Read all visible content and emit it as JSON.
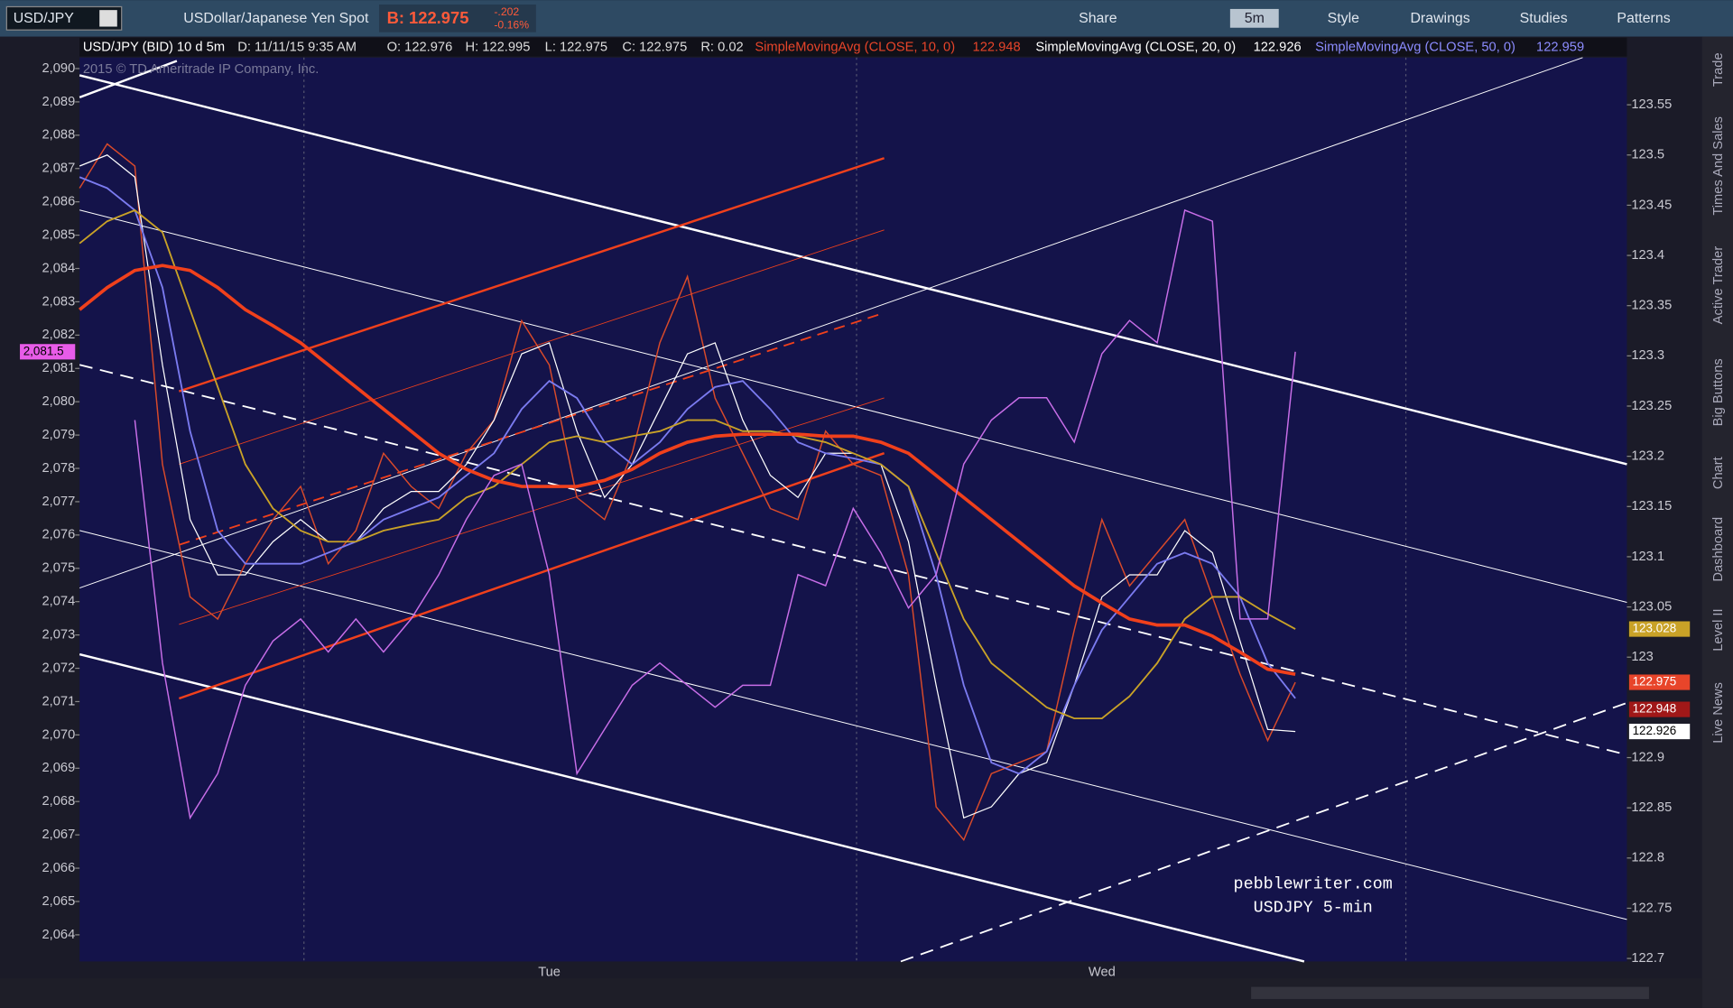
{
  "toolbar": {
    "symbol": "USD/JPY",
    "description": "USDollar/Japanese Yen Spot",
    "bid": "B: 122.975",
    "change": "-.202",
    "change_pct": "-0.16%",
    "share": "Share",
    "interval": "5m",
    "style": "Style",
    "drawings": "Drawings",
    "studies": "Studies",
    "patterns": "Patterns"
  },
  "info": {
    "symbol": "USD/JPY (BID) 10 d 5m",
    "date": "D: 11/11/15 9:35 AM",
    "open": "O: 122.976",
    "high": "H: 122.995",
    "low": "L: 122.975",
    "close": "C: 122.975",
    "range": "R: 0.02",
    "sma10": "SimpleMovingAvg (CLOSE, 10, 0)",
    "sma10_value": "122.948",
    "sma20": "SimpleMovingAvg (CLOSE, 20, 0)",
    "sma20_value": "122.926",
    "sma50": "SimpleMovingAvg (CLOSE, 50, 0)",
    "sma50_value": "122.959"
  },
  "copyright": "2015 © TD Ameritrade IP Company, Inc.",
  "watermark": [
    "pebblewriter.com",
    "USDJPY 5-min"
  ],
  "sidebar": [
    "Trade",
    "Times And Sales",
    "Active Trader",
    "Big Buttons",
    "Chart",
    "Dashboard",
    "Level II",
    "Live News"
  ],
  "chart_data": {
    "type": "line",
    "categories": [
      null,
      null,
      null,
      null,
      null,
      null,
      null,
      null,
      null,
      null,
      null,
      null,
      null,
      null,
      null,
      null,
      null,
      "Tue",
      null,
      null,
      null,
      null,
      null,
      null,
      null,
      null,
      null,
      null,
      null,
      null,
      null,
      null,
      null,
      null,
      null,
      null,
      null,
      "Wed",
      null,
      null,
      null,
      null,
      null,
      null,
      null,
      null,
      null,
      null,
      null,
      null,
      null,
      null,
      null,
      null,
      null,
      null,
      null
    ],
    "ylim": [
      122.697,
      123.597
    ],
    "yticks": [
      123.55,
      123.5,
      123.45,
      123.4,
      123.35,
      123.3,
      123.25,
      123.2,
      123.15,
      123.1,
      123.05,
      123,
      122.9,
      122.85,
      122.8,
      122.75,
      122.7
    ],
    "y2lim": [
      2063.2,
      2090.33
    ],
    "y2ticks": [
      {
        "value": 2090,
        "label": "2,090"
      },
      {
        "value": 2089,
        "label": "2,089"
      },
      {
        "value": 2088,
        "label": "2,088"
      },
      {
        "value": 2087,
        "label": "2,087"
      },
      {
        "value": 2086,
        "label": "2,086"
      },
      {
        "value": 2085,
        "label": "2,085"
      },
      {
        "value": 2084,
        "label": "2,084"
      },
      {
        "value": 2083,
        "label": "2,083"
      },
      {
        "value": 2082,
        "label": "2,082"
      },
      {
        "value": 2081,
        "label": "2,081"
      },
      {
        "value": 2080,
        "label": "2,080"
      },
      {
        "value": 2079,
        "label": "2,079"
      },
      {
        "value": 2078,
        "label": "2,078"
      },
      {
        "value": 2077,
        "label": "2,077"
      },
      {
        "value": 2076,
        "label": "2,076"
      },
      {
        "value": 2075,
        "label": "2,075"
      },
      {
        "value": 2074,
        "label": "2,074"
      },
      {
        "value": 2073,
        "label": "2,073"
      },
      {
        "value": 2072,
        "label": "2,072"
      },
      {
        "value": 2071,
        "label": "2,071"
      },
      {
        "value": 2070,
        "label": "2,070"
      },
      {
        "value": 2069,
        "label": "2,069"
      },
      {
        "value": 2068,
        "label": "2,068"
      },
      {
        "value": 2067,
        "label": "2,067"
      },
      {
        "value": 2066,
        "label": "2,066"
      },
      {
        "value": 2065,
        "label": "2,065"
      },
      {
        "value": 2064,
        "label": "2,064"
      }
    ],
    "series": [
      {
        "color": "#d94a2a",
        "line_width": 1.2,
        "values": [
          123.467,
          123.511,
          123.489,
          123.192,
          123.06,
          123.038,
          123.093,
          123.137,
          123.17,
          123.093,
          123.126,
          123.203,
          123.17,
          123.148,
          123.203,
          123.236,
          123.335,
          123.291,
          123.159,
          123.137,
          123.203,
          123.313,
          123.379,
          123.258,
          123.203,
          123.148,
          123.137,
          123.225,
          123.192,
          123.181,
          123.082,
          122.851,
          122.818,
          122.884,
          122.895,
          122.906,
          123.027,
          123.137,
          123.071,
          123.104,
          123.137,
          123.06,
          122.983,
          122.917,
          122.975,
          null,
          null,
          null,
          null,
          null,
          null,
          null,
          null,
          null,
          null,
          null,
          null
        ]
      },
      {
        "color": "#ffffff",
        "line_width": 1,
        "values": [
          123.489,
          123.5,
          123.478,
          123.291,
          123.137,
          123.082,
          123.082,
          123.115,
          123.137,
          123.115,
          123.115,
          123.148,
          123.165,
          123.165,
          123.192,
          123.236,
          123.302,
          123.313,
          123.225,
          123.159,
          123.192,
          123.247,
          123.302,
          123.313,
          123.236,
          123.181,
          123.159,
          123.203,
          123.203,
          123.192,
          123.115,
          122.972,
          122.84,
          122.851,
          122.884,
          122.895,
          122.972,
          123.06,
          123.082,
          123.082,
          123.126,
          123.104,
          123.016,
          122.928,
          122.926,
          null,
          null,
          null,
          null,
          null,
          null,
          null,
          null,
          null,
          null,
          null,
          null
        ]
      },
      {
        "color": "#7b7bf0",
        "line_width": 1.5,
        "values": [
          123.478,
          123.467,
          123.445,
          123.368,
          123.225,
          123.126,
          123.093,
          123.093,
          123.093,
          123.104,
          123.115,
          123.137,
          123.148,
          123.159,
          123.181,
          123.203,
          123.247,
          123.275,
          123.258,
          123.214,
          123.192,
          123.214,
          123.247,
          123.269,
          123.275,
          123.247,
          123.214,
          123.203,
          123.198,
          123.192,
          123.17,
          123.082,
          122.972,
          122.895,
          122.884,
          122.906,
          122.972,
          123.027,
          123.06,
          123.093,
          123.104,
          123.093,
          123.06,
          122.994,
          122.959,
          null,
          null,
          null,
          null,
          null,
          null,
          null,
          null,
          null,
          null,
          null,
          null
        ]
      },
      {
        "color": "#c9a227",
        "line_width": 1.5,
        "values": [
          123.412,
          123.434,
          123.445,
          123.423,
          123.346,
          123.269,
          123.192,
          123.148,
          123.126,
          123.115,
          123.115,
          123.126,
          123.132,
          123.137,
          123.159,
          123.17,
          123.192,
          123.214,
          123.22,
          123.214,
          123.22,
          123.225,
          123.236,
          123.236,
          123.225,
          123.225,
          123.22,
          123.214,
          123.203,
          123.192,
          123.17,
          123.104,
          123.038,
          122.994,
          122.972,
          122.95,
          122.939,
          122.939,
          122.961,
          122.994,
          123.038,
          123.06,
          123.06,
          123.043,
          123.028,
          null,
          null,
          null,
          null,
          null,
          null,
          null,
          null,
          null,
          null,
          null,
          null
        ]
      },
      {
        "color": "#f0401c",
        "line_width": 3,
        "values": [
          123.346,
          123.368,
          123.385,
          123.39,
          123.385,
          123.368,
          123.346,
          123.33,
          123.313,
          123.291,
          123.269,
          123.247,
          123.225,
          123.203,
          123.187,
          123.176,
          123.17,
          123.17,
          123.17,
          123.176,
          123.187,
          123.203,
          123.214,
          123.22,
          123.222,
          123.222,
          123.222,
          123.22,
          123.22,
          123.214,
          123.203,
          123.181,
          123.159,
          123.137,
          123.115,
          123.093,
          123.071,
          123.054,
          123.038,
          123.032,
          123.032,
          123.021,
          123.005,
          122.988,
          122.983,
          null,
          null,
          null,
          null,
          null,
          null,
          null,
          null,
          null,
          null,
          null,
          null
        ]
      },
      {
        "color": "#c86ee8",
        "line_width": 1.2,
        "axis": "y2",
        "values": [
          null,
          null,
          2079.45,
          2072.16,
          2067.51,
          2068.84,
          2071.49,
          2072.82,
          2073.48,
          2072.49,
          2073.48,
          2072.49,
          2073.48,
          2074.81,
          2076.47,
          2077.79,
          2078.13,
          2074.81,
          2068.84,
          2070.17,
          2071.49,
          2072.16,
          2071.49,
          2070.83,
          2071.49,
          2071.49,
          2074.81,
          2074.48,
          2076.8,
          2075.47,
          2073.81,
          2074.81,
          2078.13,
          2079.45,
          2080.12,
          2080.12,
          2078.79,
          2081.44,
          2082.44,
          2081.77,
          2085.75,
          2085.42,
          2073.48,
          2073.48,
          2081.5,
          null,
          null,
          null,
          null,
          null,
          null,
          null,
          null,
          null,
          null,
          null,
          null
        ]
      }
    ],
    "value_tags": [
      {
        "value": 123.028,
        "label": "123.028",
        "color": "#c9a227"
      },
      {
        "value": 122.975,
        "label": "122.975",
        "color": "#e8452a"
      },
      {
        "value": 122.948,
        "label": "122.948",
        "color": "#a01818"
      },
      {
        "value": 122.926,
        "label": "122.926",
        "color": "#ffffff"
      }
    ],
    "y2_tags": [
      {
        "value": 2081.5,
        "label": "2,081.5",
        "color": "#e85ce8"
      }
    ]
  }
}
